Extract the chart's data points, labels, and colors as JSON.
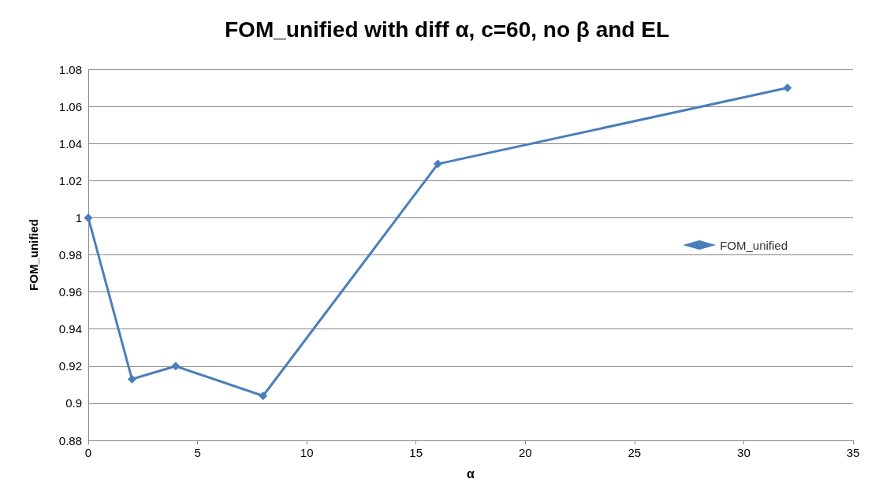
{
  "chart_data": {
    "type": "line",
    "title": "FOM_unified with diff α, c=60, no β and EL",
    "xlabel": "α",
    "ylabel": "FOM_unified",
    "x": [
      0,
      2,
      4,
      8,
      16,
      32
    ],
    "series": [
      {
        "name": "FOM_unified",
        "color": "#4a7ebb",
        "values": [
          1.0,
          0.913,
          0.92,
          0.904,
          1.029,
          1.07
        ]
      }
    ],
    "xlim": [
      0,
      35
    ],
    "xticks": [
      0,
      5,
      10,
      15,
      20,
      25,
      30,
      35
    ],
    "ylim": [
      0.88,
      1.08
    ],
    "yticks": [
      {
        "value": 0.88,
        "label": "0.88"
      },
      {
        "value": 0.9,
        "label": "0.9"
      },
      {
        "value": 0.92,
        "label": "0.92"
      },
      {
        "value": 0.94,
        "label": "0.94"
      },
      {
        "value": 0.96,
        "label": "0.96"
      },
      {
        "value": 0.98,
        "label": "0.98"
      },
      {
        "value": 1,
        "label": "1"
      },
      {
        "value": 1.02,
        "label": "1.02"
      },
      {
        "value": 1.04,
        "label": "1.04"
      },
      {
        "value": 1.06,
        "label": "1.06"
      },
      {
        "value": 1.08,
        "label": "1.08"
      }
    ],
    "grid": "y",
    "legend": "right",
    "marker": "diamond",
    "line_style": "solid"
  }
}
